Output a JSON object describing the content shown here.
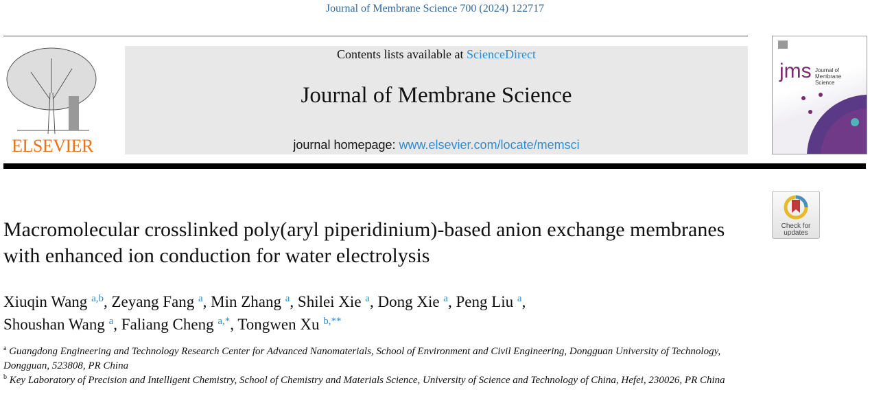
{
  "journal_reference": "Journal of Membrane Science 700 (2024) 122717",
  "publisher_logo": {
    "text": "ELSEVIER",
    "color": "#e8731a"
  },
  "masthead": {
    "contents_prefix": "Contents lists available at ",
    "contents_link": "ScienceDirect",
    "journal_title": "Journal of Membrane Science",
    "homepage_prefix": "journal homepage: ",
    "homepage_link": "www.elsevier.com/locate/memsci"
  },
  "cover": {
    "logo_text": "jms",
    "title_lines": [
      "Journal of",
      "Membrane",
      "Science"
    ]
  },
  "check_updates": {
    "line1": "Check for",
    "line2": "updates"
  },
  "article_title": "Macromolecular crosslinked poly(aryl piperidinium)-based anion exchange membranes with enhanced ion conduction for water electrolysis",
  "authors": [
    {
      "name": "Xiuqin Wang",
      "sup": "a,b",
      "sep": ", "
    },
    {
      "name": "Zeyang Fang",
      "sup": "a",
      "sep": ", "
    },
    {
      "name": "Min Zhang",
      "sup": "a",
      "sep": ", "
    },
    {
      "name": "Shilei Xie",
      "sup": "a",
      "sep": ", "
    },
    {
      "name": "Dong Xie",
      "sup": "a",
      "sep": ", "
    },
    {
      "name": "Peng Liu",
      "sup": "a",
      "sep": ","
    },
    {
      "name": "Shoushan Wang",
      "sup": "a",
      "sep": ", "
    },
    {
      "name": "Faliang Cheng",
      "sup": "a,*",
      "sep": ", "
    },
    {
      "name": "Tongwen Xu",
      "sup": "b,**",
      "sep": ""
    }
  ],
  "affiliations": [
    {
      "label": "a",
      "text": "Guangdong Engineering and Technology Research Center for Advanced Nanomaterials, School of Environment and Civil Engineering, Dongguan University of Technology, Dongguan, 523808, PR China"
    },
    {
      "label": "b",
      "text": "Key Laboratory of Precision and Intelligent Chemistry, School of Chemistry and Materials Science, University of Science and Technology of China, Hefei, 230026, PR China"
    }
  ]
}
